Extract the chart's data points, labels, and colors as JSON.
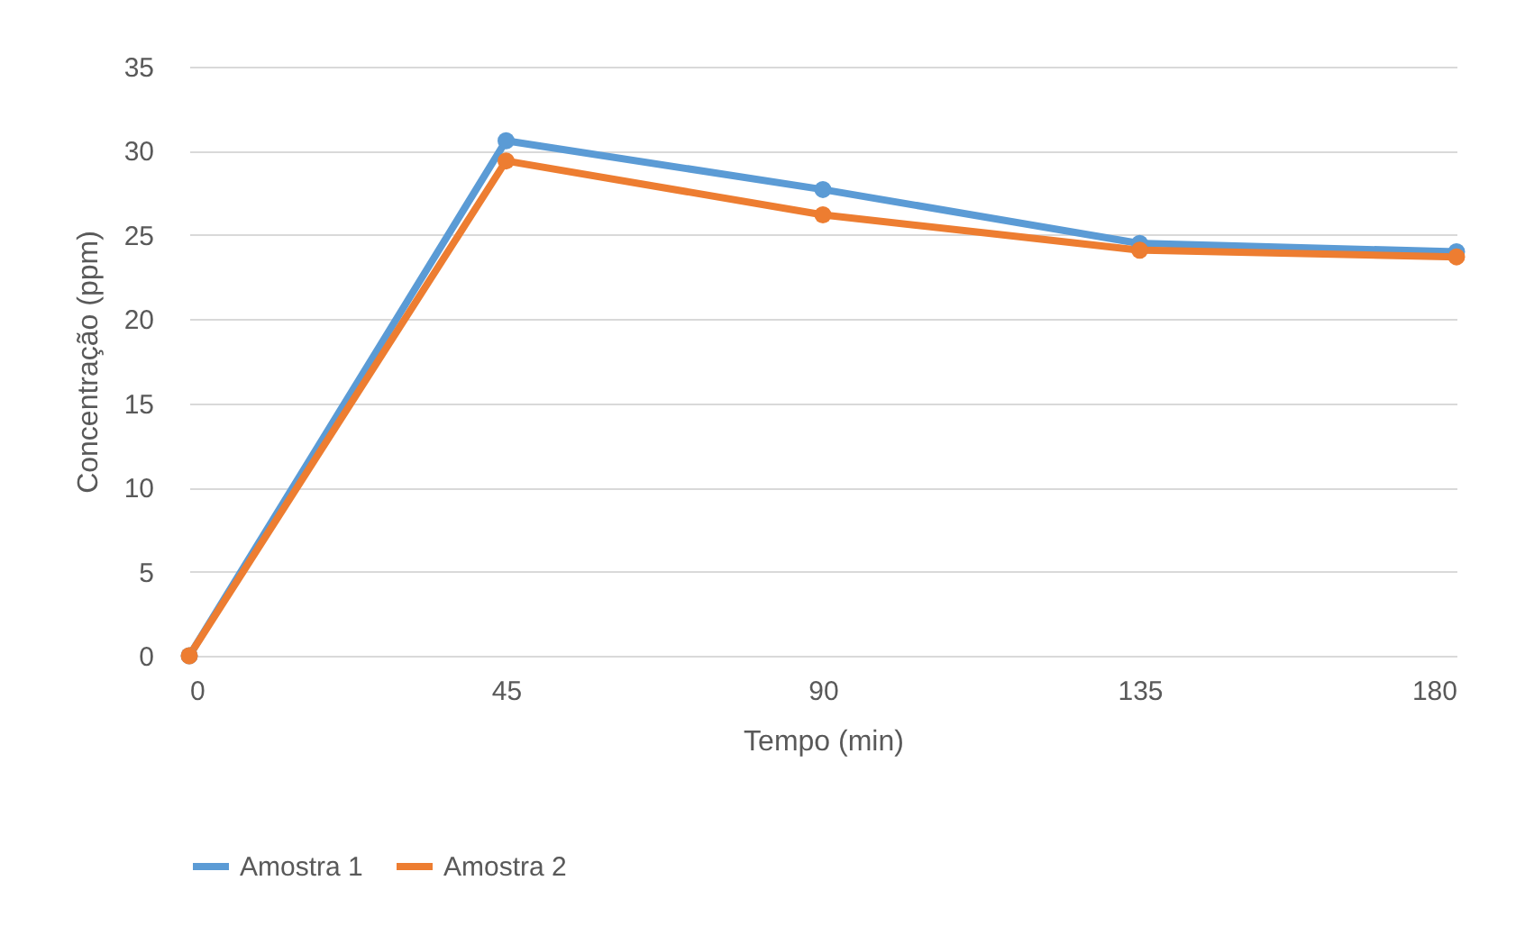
{
  "chart_data": {
    "type": "line",
    "xlabel": "Tempo (min)",
    "ylabel": "Concentração (ppm)",
    "x": [
      0,
      45,
      90,
      135,
      180
    ],
    "series": [
      {
        "name": "Amostra 1",
        "color": "#5b9bd5",
        "values": [
          0,
          30.6,
          27.7,
          24.5,
          24.0
        ]
      },
      {
        "name": "Amostra 2",
        "color": "#ed7d31",
        "values": [
          0,
          29.4,
          26.2,
          24.1,
          23.7
        ]
      }
    ],
    "xlim": [
      0,
      180
    ],
    "xticks": [
      0,
      45,
      90,
      135,
      180
    ],
    "ylim": [
      0,
      35
    ],
    "yticks": [
      0,
      5,
      10,
      15,
      20,
      25,
      30,
      35
    ],
    "grid": "y",
    "legend": "bottom",
    "marker": "circle",
    "line_style": "solid"
  }
}
